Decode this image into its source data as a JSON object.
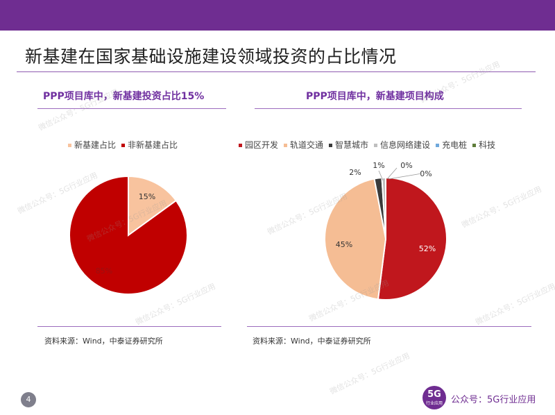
{
  "slide": {
    "title": "新基建在国家基础设施建设领域投资的占比情况",
    "page_number": "4",
    "watermark": "微信公众号：5G行业应用",
    "account_label": "公众号：5G行业应用",
    "logo_big": "5G",
    "logo_small": "行业应用",
    "accent_color": "#6f2d91"
  },
  "left_panel": {
    "title": "PPP项目库中，新基建投资占比15%",
    "source": "资料来源：Wind，中泰证券研究所"
  },
  "right_panel": {
    "title": "PPP项目库中，新基建项目构成",
    "source": "资料来源：Wind，中泰证券研究所"
  },
  "chart_data": [
    {
      "type": "pie",
      "title": "",
      "legend": "top",
      "categories": [
        "新基建占比",
        "非新基建占比"
      ],
      "values": [
        15,
        85
      ],
      "labels": [
        "15%",
        "85%"
      ],
      "colors": [
        "#f8c39e",
        "#c00000"
      ]
    },
    {
      "type": "pie",
      "title": "",
      "legend": "top",
      "categories": [
        "园区开发",
        "轨道交通",
        "智慧城市",
        "信息网络建设",
        "充电桩",
        "科技"
      ],
      "values": [
        52,
        45,
        2,
        1,
        0,
        0
      ],
      "labels": [
        "52%",
        "45%",
        "2%",
        "1%",
        "0%",
        "0%"
      ],
      "colors": [
        "#c0171d",
        "#f5bd94",
        "#3a3a3a",
        "#bfbfbf",
        "#6fa8dc",
        "#5f7d3a"
      ]
    }
  ]
}
